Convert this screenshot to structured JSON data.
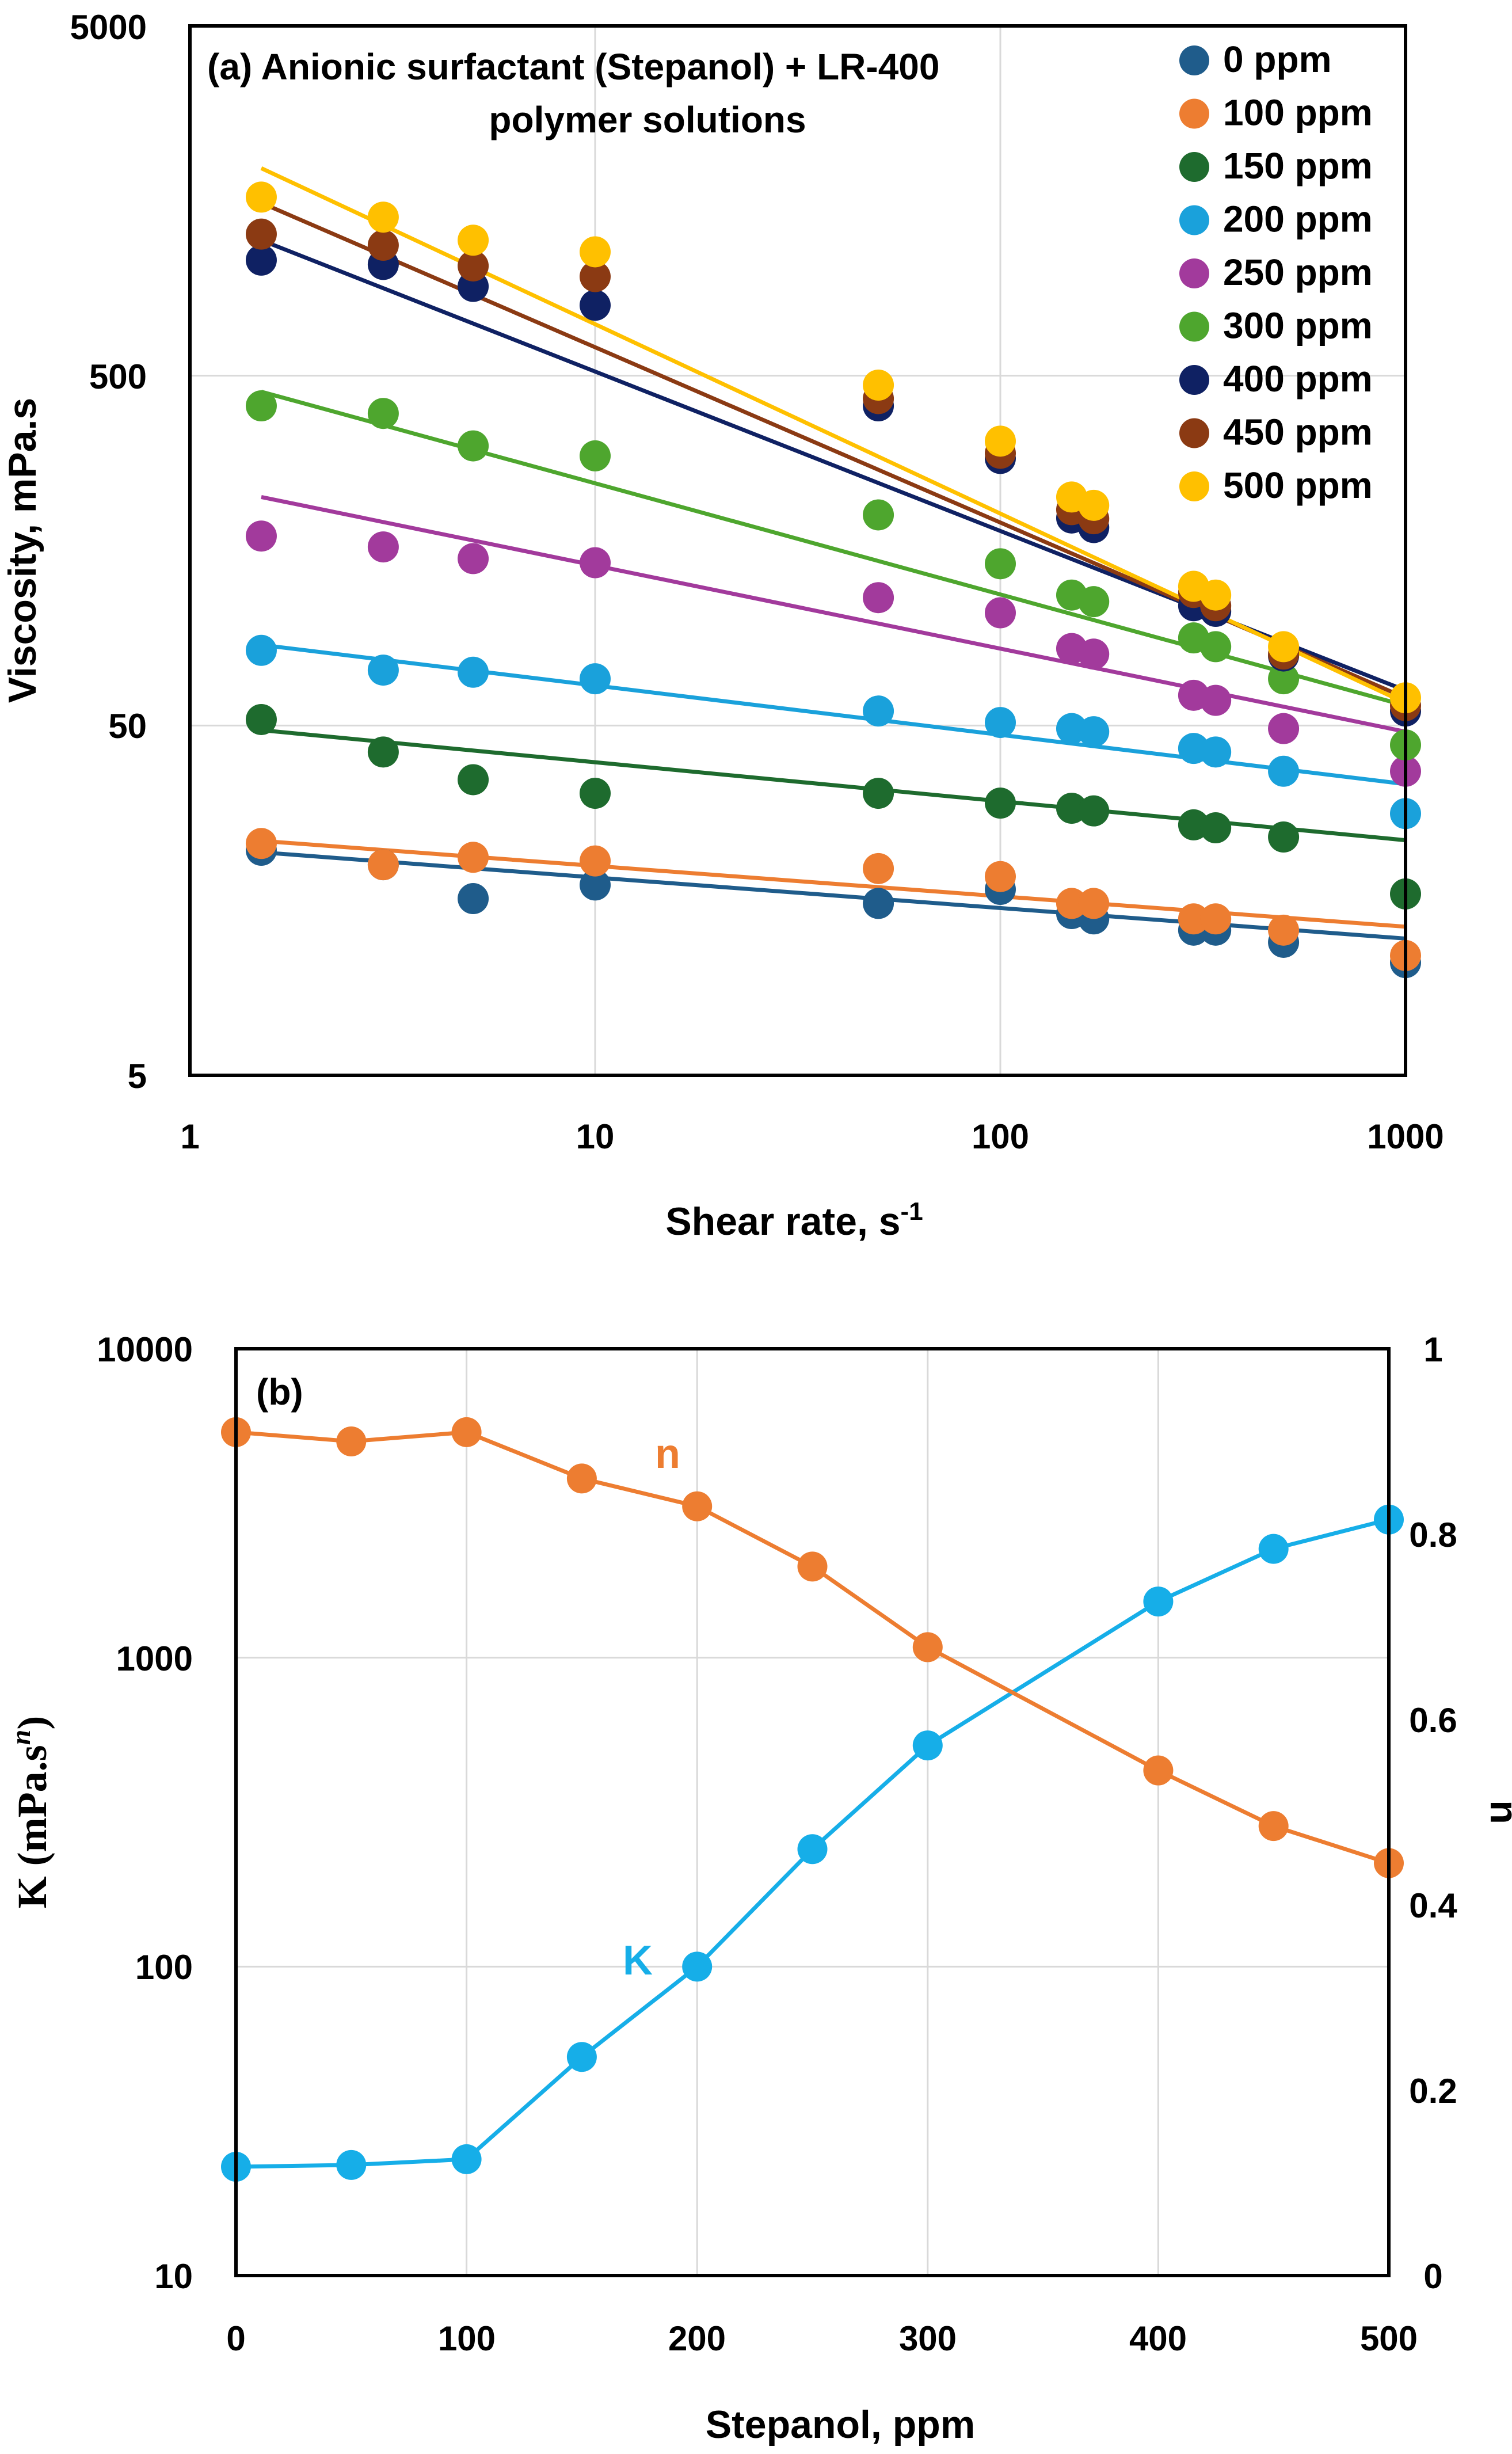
{
  "chart_data": [
    {
      "type": "scatter",
      "title": "(a) Anionic surfactant (Stepanol) + LR-400",
      "title_line2": "polymer solutions",
      "xlabel": "Shear rate, s",
      "xlabel_sup": "-1",
      "ylabel": "Viscosity, mPa.s",
      "xscale": "log",
      "yscale": "log",
      "xlim": [
        1,
        1000
      ],
      "ylim": [
        5,
        5000
      ],
      "xticks": [
        "1",
        "10",
        "100",
        "1000"
      ],
      "yticks": [
        "5",
        "50",
        "500",
        "5000"
      ],
      "grid": true,
      "legend_position": "top-right",
      "x": [
        1.5,
        3,
        5,
        10,
        50,
        100,
        150,
        170,
        300,
        340,
        500,
        1000
      ],
      "series": [
        {
          "name": "0 ppm",
          "color": "#1f5c8b",
          "values": [
            22,
            20,
            16,
            17.5,
            15.5,
            17,
            14.5,
            14,
            13,
            13,
            12,
            10.5
          ],
          "fit": [
            1.5,
            21.7,
            1000,
            12.3
          ]
        },
        {
          "name": "100 ppm",
          "color": "#ed7d31",
          "values": [
            23,
            20,
            21,
            20.5,
            19.5,
            18.5,
            15.5,
            15.5,
            14,
            14,
            13,
            11
          ],
          "fit": [
            1.5,
            23.4,
            1000,
            13.3
          ]
        },
        {
          "name": "150 ppm",
          "color": "#1e6b2e",
          "values": [
            52,
            42,
            35,
            32,
            32,
            30,
            29,
            28.5,
            26,
            25.5,
            24,
            16.5
          ],
          "fit": [
            1.5,
            48.5,
            1000,
            23.5
          ]
        },
        {
          "name": "200 ppm",
          "color": "#1aa1db",
          "values": [
            82,
            72,
            71,
            68,
            55,
            51,
            49,
            48,
            43,
            42,
            37,
            28
          ],
          "fit": [
            1.5,
            85,
            1000,
            34
          ]
        },
        {
          "name": "250 ppm",
          "color": "#a23a9c",
          "values": [
            174,
            162,
            150,
            146,
            116,
            105,
            83,
            80,
            61,
            59,
            49,
            37
          ],
          "fit": [
            1.5,
            225,
            1000,
            48
          ]
        },
        {
          "name": "300 ppm",
          "color": "#4ea62e",
          "values": [
            410,
            390,
            315,
            295,
            200,
            145,
            118,
            113,
            89,
            84,
            68,
            44
          ],
          "fit": [
            1.5,
            450,
            1000,
            57
          ]
        },
        {
          "name": "400 ppm",
          "color": "#0f2163",
          "values": [
            1070,
            1040,
            900,
            795,
            410,
            290,
            196,
            184,
            110,
            106,
            79,
            55
          ],
          "fit": [
            1.5,
            1220,
            1000,
            63
          ]
        },
        {
          "name": "450 ppm",
          "color": "#8b3a13",
          "values": [
            1270,
            1180,
            1030,
            960,
            430,
            300,
            207,
            195,
            120,
            110,
            80,
            57
          ],
          "fit": [
            1.5,
            1560,
            1000,
            60
          ]
        },
        {
          "name": "500 ppm",
          "color": "#ffc000",
          "values": [
            1620,
            1420,
            1220,
            1130,
            470,
            325,
            225,
            213,
            125,
            118,
            84,
            60
          ],
          "fit": [
            1.5,
            1960,
            1000,
            58
          ]
        }
      ]
    },
    {
      "type": "line",
      "title": "(b)",
      "xlabel": "Stepanol, ppm",
      "ylabel": "K (mPa.s",
      "ylabel_sup": "n",
      "ylabel_right": "n",
      "xlim": [
        0,
        500
      ],
      "ylim_left": [
        10,
        10000
      ],
      "ylim_right": [
        0,
        1
      ],
      "xticks": [
        "0",
        "100",
        "200",
        "300",
        "400",
        "500"
      ],
      "yticks_left": [
        "10",
        "100",
        "1000",
        "10000"
      ],
      "yticks_right": [
        "0",
        "0.2",
        "0.4",
        "0.6",
        "0.8",
        "1"
      ],
      "grid": true,
      "x": [
        0,
        50,
        100,
        150,
        200,
        250,
        300,
        400,
        450,
        500
      ],
      "series": [
        {
          "name": "K",
          "axis": "left",
          "color": "#16aee8",
          "values": [
            22.5,
            22.8,
            23.8,
            51,
            100,
            240,
            520,
            1520,
            2250,
            2800
          ]
        },
        {
          "name": "n",
          "axis": "right",
          "color": "#ed7d31",
          "values": [
            0.91,
            0.9,
            0.91,
            0.86,
            0.83,
            0.765,
            0.678,
            0.545,
            0.485,
            0.445
          ]
        }
      ],
      "annotations": [
        {
          "text": "n",
          "color": "#ed7d31",
          "near_x": 190,
          "near": "upper-middle"
        },
        {
          "text": "K",
          "color": "#16aee8",
          "near_x": 170,
          "near": "lower-middle"
        }
      ]
    }
  ]
}
